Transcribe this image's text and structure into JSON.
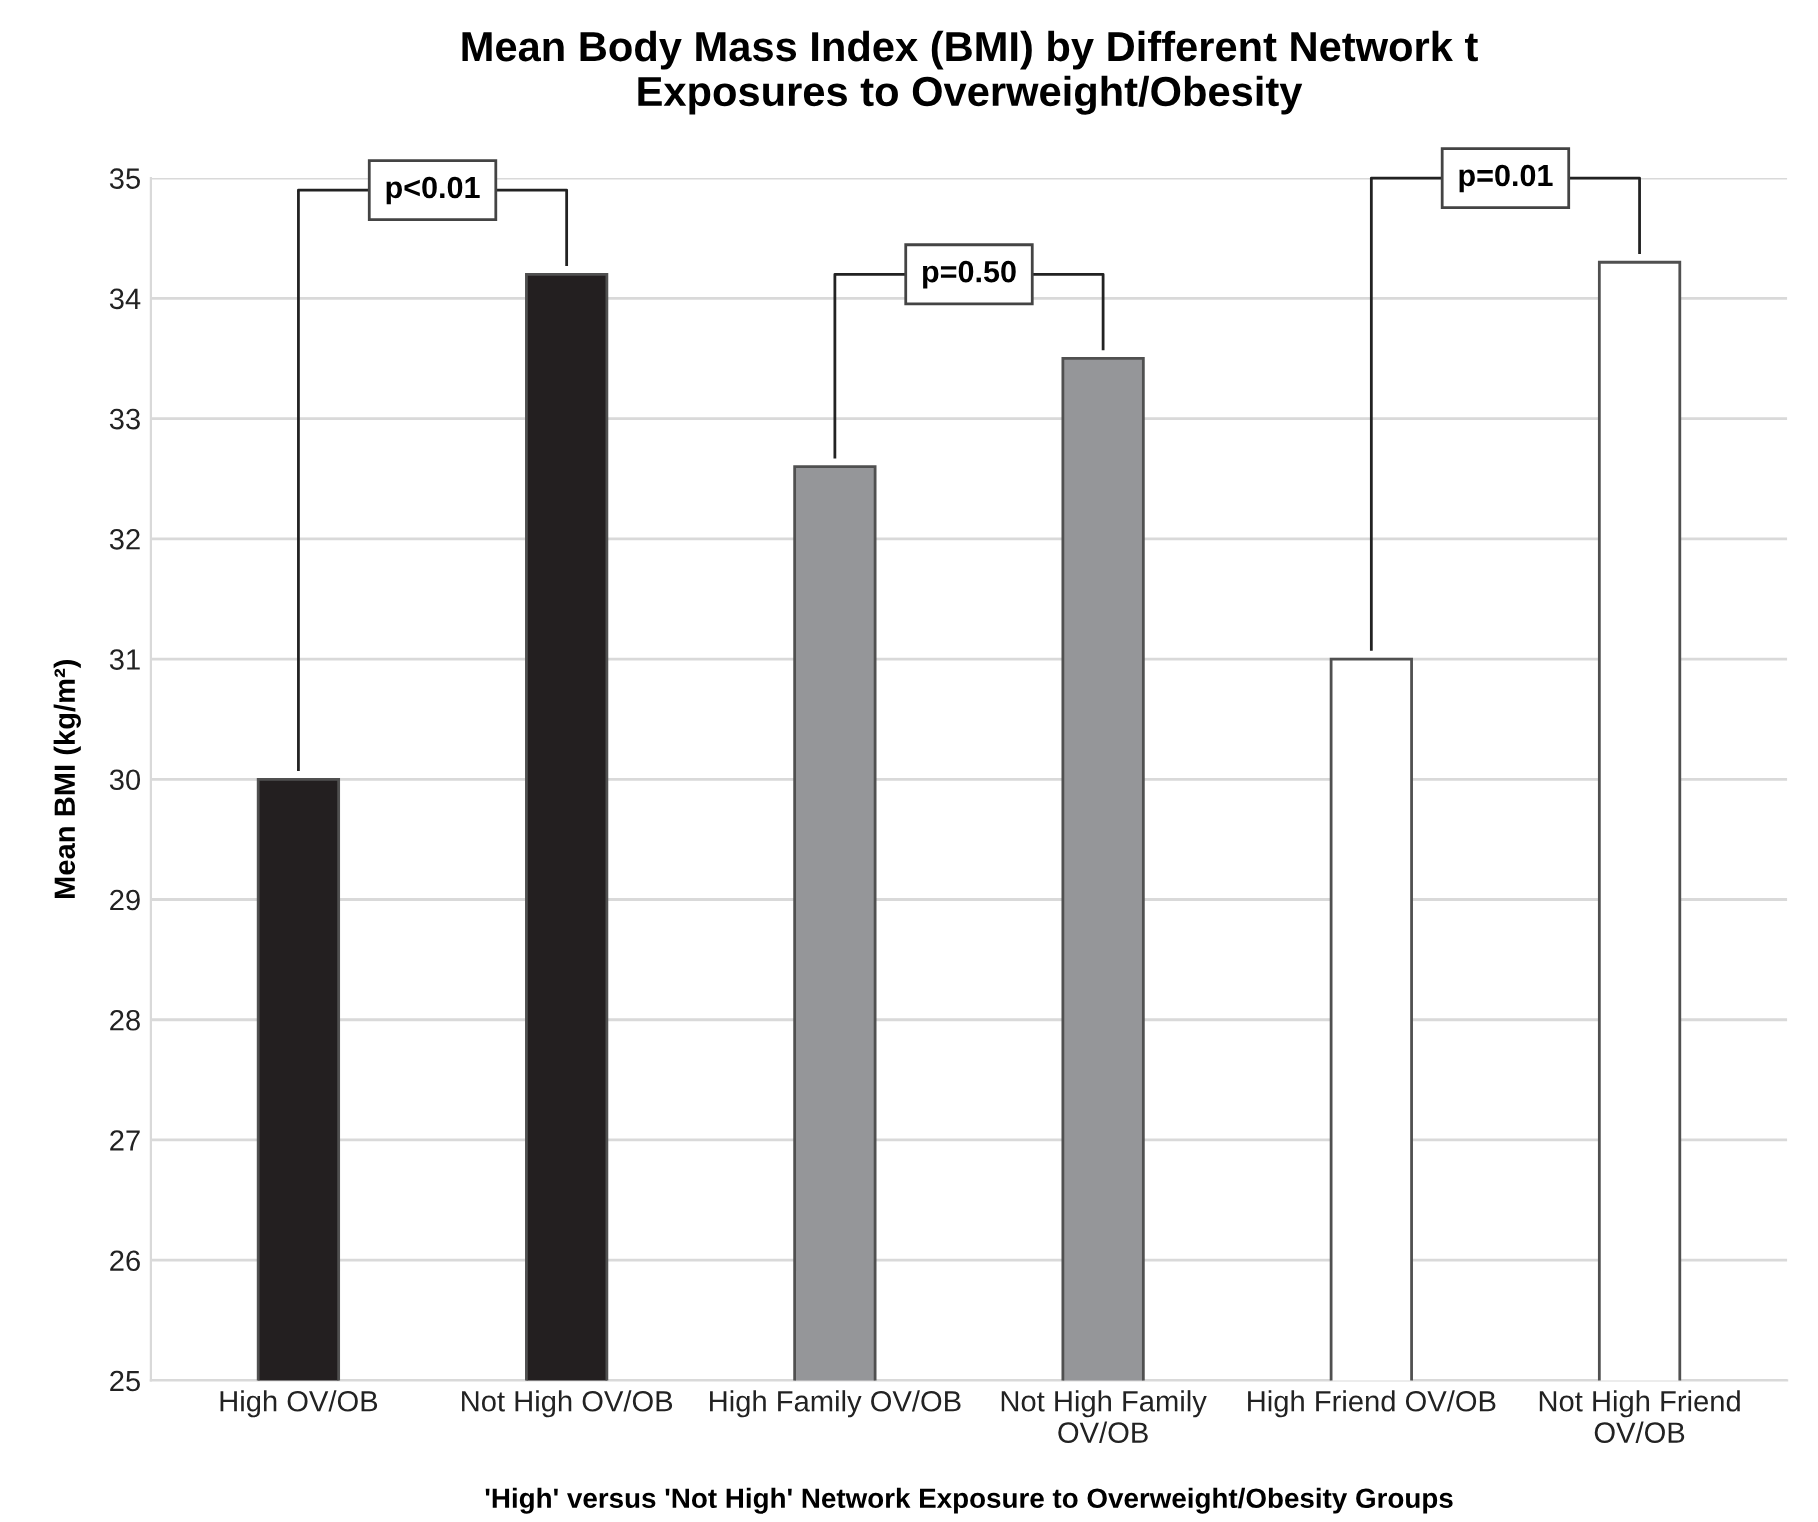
{
  "chart_data": {
    "type": "bar",
    "title": "Mean Body Mass Index (BMI) by Different Network t\nExposures to Overweight/Obesity",
    "xlabel": "'High' versus 'Not High' Network Exposure to Overweight/Obesity Groups",
    "ylabel": "Mean BMI (kg/m²)",
    "categories": [
      "High OV/OB",
      "Not High OV/OB",
      "High Family OV/OB",
      "Not High Family\nOV/OB",
      "High Friend OV/OB",
      "Not High Friend\nOV/OB"
    ],
    "values": [
      30.0,
      34.2,
      32.6,
      33.5,
      31.0,
      34.3
    ],
    "colors": [
      "#231f20",
      "#231f20",
      "#959699",
      "#959699",
      "#ffffff",
      "#ffffff"
    ],
    "annotations": [
      "p<0.01",
      "p=0.50",
      "p=0.01"
    ],
    "ylim": [
      25,
      35
    ],
    "yticks": [
      25,
      26,
      27,
      28,
      29,
      30,
      31,
      32,
      33,
      34,
      35
    ],
    "grid": "y"
  }
}
